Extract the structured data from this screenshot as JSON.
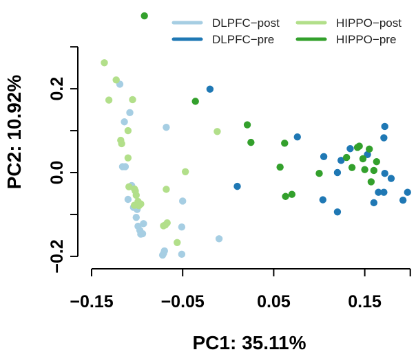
{
  "chart_data": {
    "type": "scatter",
    "title": "",
    "xlabel": "PC1: 35.11%",
    "ylabel": "PC2: 10.92%",
    "xlim": [
      -0.15,
      0.2
    ],
    "ylim": [
      -0.2,
      0.35
    ],
    "xticks": [
      -0.15,
      -0.05,
      0.05,
      0.15
    ],
    "xtick_labels": [
      "−0.15",
      "−0.05",
      "0.05",
      "0.15"
    ],
    "yticks": [
      -0.2,
      -0.1,
      0.0,
      0.1,
      0.2,
      0.3
    ],
    "ytick_labels": [
      "−0.2",
      "",
      "0.0",
      "",
      "0.2",
      ""
    ],
    "grid": false,
    "legend_position": "top-right",
    "series": [
      {
        "name": "DLPFC−post",
        "color": "#a6cee3",
        "points": [
          [
            -0.119,
            0.211
          ],
          [
            -0.114,
            0.121
          ],
          [
            -0.108,
            0.143
          ],
          [
            -0.068,
            0.108
          ],
          [
            -0.116,
            0.014
          ],
          [
            -0.113,
            0.014
          ],
          [
            -0.106,
            -0.031
          ],
          [
            -0.11,
            -0.064
          ],
          [
            -0.104,
            -0.083
          ],
          [
            -0.1,
            -0.088
          ],
          [
            -0.101,
            -0.107
          ],
          [
            -0.099,
            -0.128
          ],
          [
            -0.097,
            -0.138
          ],
          [
            -0.096,
            -0.147
          ],
          [
            -0.094,
            -0.146
          ],
          [
            -0.093,
            -0.122
          ],
          [
            -0.071,
            -0.193
          ],
          [
            -0.07,
            -0.187
          ],
          [
            -0.072,
            -0.197
          ],
          [
            -0.05,
            -0.068
          ],
          [
            -0.051,
            -0.13
          ],
          [
            -0.051,
            -0.195
          ],
          [
            -0.01,
            -0.158
          ]
        ]
      },
      {
        "name": "DLPFC−pre",
        "color": "#1f78b4",
        "points": [
          [
            -0.02,
            0.199
          ],
          [
            0.01,
            -0.033
          ],
          [
            0.076,
            0.085
          ],
          [
            0.105,
            0.038
          ],
          [
            0.104,
            -0.065
          ],
          [
            0.12,
            0.0
          ],
          [
            0.12,
            -0.094
          ],
          [
            0.124,
            0.029
          ],
          [
            0.134,
            0.057
          ],
          [
            0.153,
            0.043
          ],
          [
            0.16,
            -0.072
          ],
          [
            0.165,
            -0.047
          ],
          [
            0.171,
            -0.047
          ],
          [
            0.171,
            0.083
          ],
          [
            0.172,
            0.11
          ],
          [
            0.172,
            -0.002
          ],
          [
            0.179,
            -0.014
          ],
          [
            0.192,
            -0.066
          ],
          [
            0.197,
            -0.047
          ]
        ]
      },
      {
        "name": "HIPPO−post",
        "color": "#b2df8a",
        "points": [
          [
            -0.136,
            0.262
          ],
          [
            -0.131,
            0.173
          ],
          [
            -0.123,
            0.221
          ],
          [
            -0.118,
            0.077
          ],
          [
            -0.117,
            0.069
          ],
          [
            -0.11,
            0.035
          ],
          [
            -0.11,
            0.1
          ],
          [
            -0.105,
            0.174
          ],
          [
            -0.109,
            -0.034
          ],
          [
            -0.103,
            -0.039
          ],
          [
            -0.102,
            -0.044
          ],
          [
            -0.101,
            -0.054
          ],
          [
            -0.099,
            -0.069
          ],
          [
            -0.103,
            -0.078
          ],
          [
            -0.098,
            -0.079
          ],
          [
            -0.096,
            -0.075
          ],
          [
            -0.071,
            -0.127
          ],
          [
            -0.069,
            -0.125
          ],
          [
            -0.067,
            -0.12
          ],
          [
            -0.068,
            -0.04
          ],
          [
            -0.047,
            0.002
          ],
          [
            -0.056,
            -0.167
          ],
          [
            -0.012,
            0.098
          ]
        ]
      },
      {
        "name": "HIPPO−pre",
        "color": "#33a02c",
        "points": [
          [
            -0.092,
            0.374
          ],
          [
            -0.036,
            0.17
          ],
          [
            0.021,
            0.114
          ],
          [
            0.025,
            0.072
          ],
          [
            0.057,
            0.013
          ],
          [
            0.062,
            0.07
          ],
          [
            0.063,
            -0.057
          ],
          [
            0.07,
            -0.052
          ],
          [
            0.1,
            -0.002
          ],
          [
            0.13,
            0.036
          ],
          [
            0.136,
            0.012
          ],
          [
            0.142,
            0.06
          ],
          [
            0.144,
            0.063
          ],
          [
            0.148,
            0.033
          ],
          [
            0.15,
            0.007
          ],
          [
            0.155,
            0.056
          ],
          [
            0.157,
            -0.022
          ],
          [
            0.16,
            0.005
          ],
          [
            0.163,
            0.026
          ]
        ]
      }
    ]
  }
}
